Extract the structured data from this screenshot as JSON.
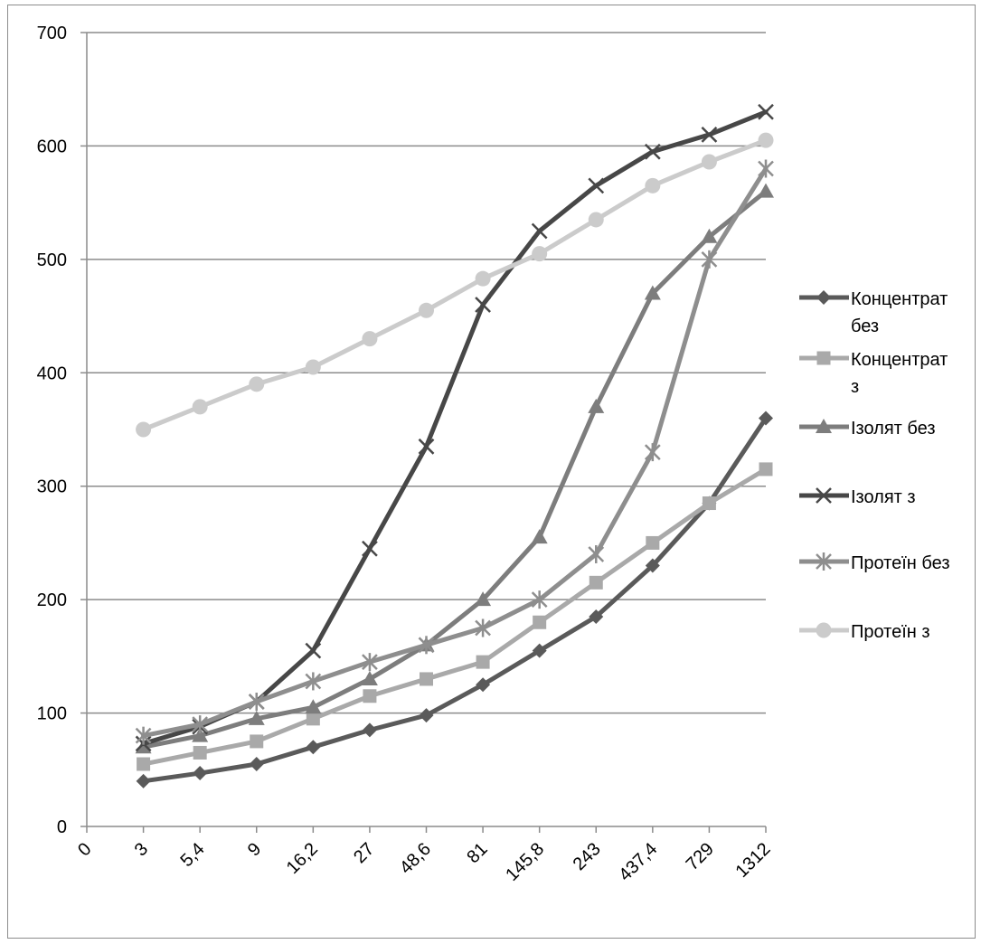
{
  "chart_data": {
    "type": "line",
    "categories": [
      "0",
      "3",
      "5,4",
      "9",
      "16,2",
      "27",
      "48,6",
      "81",
      "145,8",
      "243",
      "437,4",
      "729",
      "1312"
    ],
    "ylim": [
      0,
      700
    ],
    "yticks": [
      0,
      100,
      200,
      300,
      400,
      500,
      600,
      700
    ],
    "grid": "horizontal",
    "legend_position": "right",
    "series": [
      {
        "name": "Концентрат без",
        "legend_lines": [
          "Концентрат",
          "без"
        ],
        "color": "#5a5a5a",
        "marker": "diamond",
        "values": [
          null,
          40,
          47,
          55,
          70,
          85,
          98,
          125,
          155,
          185,
          230,
          285,
          360
        ]
      },
      {
        "name": "Концентрат з",
        "legend_lines": [
          "Концентрат",
          "з"
        ],
        "color": "#a9a9a9",
        "marker": "square",
        "values": [
          null,
          55,
          65,
          75,
          95,
          115,
          130,
          145,
          180,
          215,
          250,
          285,
          315
        ]
      },
      {
        "name": "Ізолят без",
        "legend_lines": [
          "Ізолят без"
        ],
        "color": "#7d7d7d",
        "marker": "triangle",
        "values": [
          null,
          70,
          80,
          95,
          105,
          130,
          160,
          200,
          255,
          370,
          470,
          520,
          560
        ]
      },
      {
        "name": "Ізолят з",
        "legend_lines": [
          "Ізолят з"
        ],
        "color": "#474747",
        "marker": "x",
        "values": [
          null,
          73,
          88,
          110,
          155,
          245,
          335,
          460,
          525,
          565,
          595,
          610,
          630
        ]
      },
      {
        "name": "Протеїн без",
        "legend_lines": [
          "Протеїн без"
        ],
        "color": "#8e8e8e",
        "marker": "star",
        "values": [
          null,
          80,
          90,
          110,
          128,
          145,
          160,
          175,
          200,
          240,
          330,
          500,
          580
        ]
      },
      {
        "name": "Протеїн з",
        "legend_lines": [
          "Протеїн з"
        ],
        "color": "#cbcbcb",
        "marker": "circle",
        "values": [
          null,
          350,
          370,
          390,
          405,
          430,
          455,
          483,
          505,
          535,
          565,
          586,
          605
        ]
      }
    ]
  }
}
